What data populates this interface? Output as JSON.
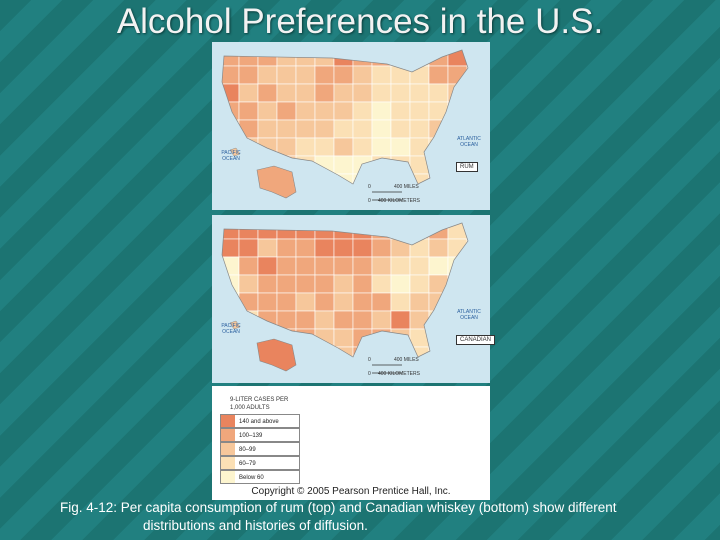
{
  "title": "Alcohol Preferences in the U.S.",
  "maps": [
    {
      "label": "RUM",
      "pacific": "PACIFIC OCEAN",
      "atlantic": "ATLANTIC OCEAN",
      "scale": {
        "zero_miles": "0",
        "miles": "400 MILES",
        "zero_km": "0",
        "km": "400 KILOMETERS"
      }
    },
    {
      "label": "CANADIAN",
      "pacific": "PACIFIC OCEAN",
      "atlantic": "ATLANTIC OCEAN",
      "scale": {
        "zero_miles": "0",
        "miles": "400 MILES",
        "zero_km": "0",
        "km": "400 KILOMETERS"
      }
    }
  ],
  "legend": {
    "title": "9-LITER CASES PER 1,000 ADULTS",
    "items": [
      {
        "label": "140 and above",
        "color": "#e9845e"
      },
      {
        "label": "100–139",
        "color": "#f0a77c"
      },
      {
        "label": "80–99",
        "color": "#f6c79b"
      },
      {
        "label": "60–79",
        "color": "#fbe0b5"
      },
      {
        "label": "Below 60",
        "color": "#fdf5cf"
      }
    ]
  },
  "copyright": "Copyright © 2005 Pearson Prentice Hall, Inc.",
  "caption": "Fig. 4-12: Per capita consumption of rum (top) and Canadian whiskey (bottom) show different distributions and histories of diffusion."
}
